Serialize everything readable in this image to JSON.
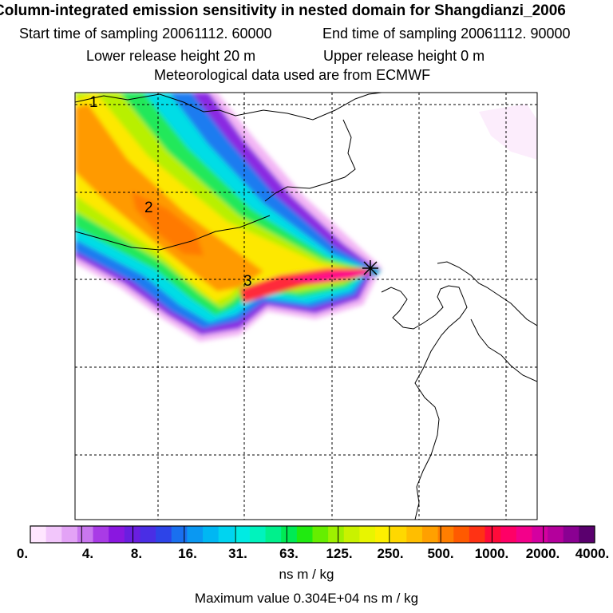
{
  "header": {
    "title": "Column-integrated emission sensitivity in nested domain for Shangdianzi_2006",
    "start_time": "Start time of sampling 20061112. 60000",
    "end_time": "End time of sampling 20061112. 90000",
    "lower_height": "Lower release height   20 m",
    "upper_height": "Upper release height    0 m",
    "met_data": "Meteorological data used are from ECMWF"
  },
  "map": {
    "contour_labels": [
      "3",
      "2",
      "1"
    ],
    "receptor_marker": "+"
  },
  "colorbar": {
    "tick_labels": [
      "0.",
      "4.",
      "8.",
      "16.",
      "31.",
      "63.",
      "125.",
      "250.",
      "500.",
      "1000.",
      "2000.",
      "4000."
    ],
    "colors": [
      "#ffe6ff",
      "#f2c6fb",
      "#e3a3f6",
      "#c977ef",
      "#a93be6",
      "#8a17e0",
      "#6a1ee0",
      "#4a2ee5",
      "#2d44e8",
      "#1a70ef",
      "#0a98f2",
      "#00b7f3",
      "#00d4f0",
      "#00ebe3",
      "#00f3bd",
      "#00f08c",
      "#00ea54",
      "#20ea10",
      "#66ee00",
      "#9ef000",
      "#c9f200",
      "#e8f500",
      "#fdf000",
      "#ffd800",
      "#ffbe00",
      "#ffa000",
      "#ff7e00",
      "#ff5a00",
      "#ff3214",
      "#ff0b3a",
      "#ff0066",
      "#f3008a",
      "#d400a0",
      "#b4009c",
      "#8a0092",
      "#5a006e"
    ],
    "units": "ns m / kg",
    "max_value": "Maximum value  0.304E+04 ns m / kg"
  }
}
